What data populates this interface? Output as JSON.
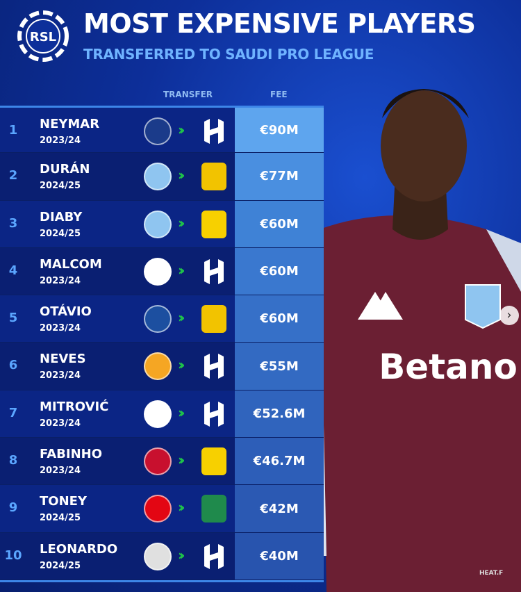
{
  "header": {
    "logo_text": "RSL",
    "title": "MOST EXPENSIVE PLAYERS",
    "subtitle": "TRANSFERRED TO SAUDI PRO LEAGUE"
  },
  "columns": {
    "transfer": "TRANSFER",
    "fee": "FEE"
  },
  "colors": {
    "accent": "#5ba6ff",
    "arrow": "#1fc34a",
    "fee_top": "#5ea5ee",
    "fee_bottom": "#2a55b8"
  },
  "rows": [
    {
      "rank": "1",
      "name": "NEYMAR",
      "season": "2023/24",
      "from": "psg-crest-icon",
      "to": "al-hilal-crest-icon",
      "fee": "€90M"
    },
    {
      "rank": "2",
      "name": "DURÁN",
      "season": "2024/25",
      "from": "aston-villa-crest-icon",
      "to": "al-nassr-crest-icon",
      "fee": "€77M"
    },
    {
      "rank": "3",
      "name": "DIABY",
      "season": "2024/25",
      "from": "aston-villa-crest-icon",
      "to": "al-ittihad-crest-icon",
      "fee": "€60M"
    },
    {
      "rank": "4",
      "name": "MALCOM",
      "season": "2023/24",
      "from": "zenit-crest-icon",
      "to": "al-hilal-crest-icon",
      "fee": "€60M"
    },
    {
      "rank": "5",
      "name": "OTÁVIO",
      "season": "2023/24",
      "from": "porto-crest-icon",
      "to": "al-nassr-crest-icon",
      "fee": "€60M"
    },
    {
      "rank": "6",
      "name": "NEVES",
      "season": "2023/24",
      "from": "wolves-crest-icon",
      "to": "al-hilal-crest-icon",
      "fee": "€55M"
    },
    {
      "rank": "7",
      "name": "MITROVIĆ",
      "season": "2023/24",
      "from": "fulham-crest-icon",
      "to": "al-hilal-crest-icon",
      "fee": "€52.6M"
    },
    {
      "rank": "8",
      "name": "FABINHO",
      "season": "2023/24",
      "from": "liverpool-crest-icon",
      "to": "al-ittihad-crest-icon",
      "fee": "€46.7M"
    },
    {
      "rank": "9",
      "name": "TONEY",
      "season": "2024/25",
      "from": "brentford-crest-icon",
      "to": "al-ahli-crest-icon",
      "fee": "€42M"
    },
    {
      "rank": "10",
      "name": "LEONARDO",
      "season": "2024/25",
      "from": "benfica-crest-icon",
      "to": "al-hilal-crest-icon",
      "fee": "€40M"
    }
  ],
  "photo": {
    "sponsor": "Betano",
    "crest": "ASTON VILLA"
  },
  "watermark": "HEAT.F"
}
